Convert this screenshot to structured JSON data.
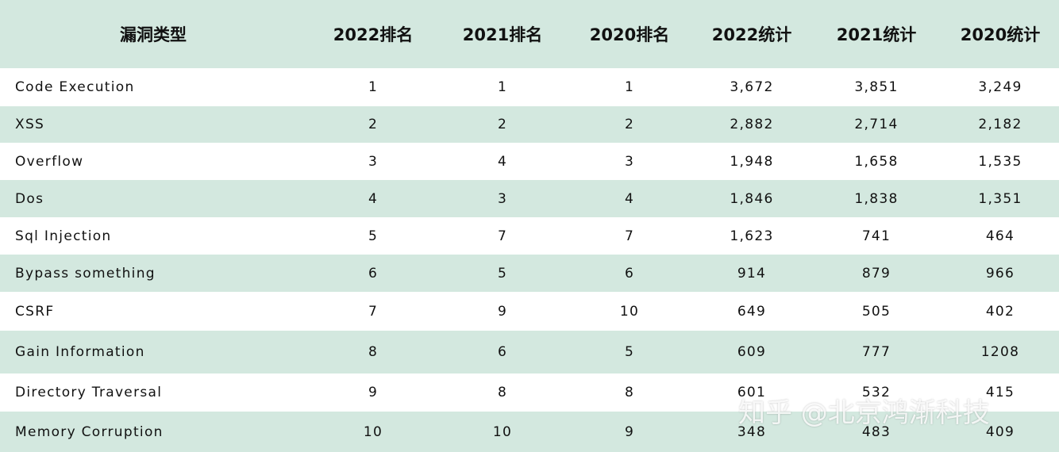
{
  "table": {
    "header": [
      "漏洞类型",
      "2022排名",
      "2021排名",
      "2020排名",
      "2022统计",
      "2021统计",
      "2020统计"
    ],
    "rows": [
      [
        "Code Execution",
        "1",
        "1",
        "1",
        "3,672",
        "3,851",
        "3,249"
      ],
      [
        "XSS",
        "2",
        "2",
        "2",
        "2,882",
        "2,714",
        "2,182"
      ],
      [
        "Overflow",
        "3",
        "4",
        "3",
        "1,948",
        "1,658",
        "1,535"
      ],
      [
        "Dos",
        "4",
        "3",
        "4",
        "1,846",
        "1,838",
        "1,351"
      ],
      [
        "Sql Injection",
        "5",
        "7",
        "7",
        "1,623",
        "741",
        "464"
      ],
      [
        "Bypass something",
        "6",
        "5",
        "6",
        "914",
        "879",
        "966"
      ],
      [
        "CSRF",
        "7",
        "9",
        "10",
        "649",
        "505",
        "402"
      ],
      [
        "Gain Information",
        "8",
        "6",
        "5",
        "609",
        "777",
        "1208"
      ],
      [
        "Directory Traversal",
        "9",
        "8",
        "8",
        "601",
        "532",
        "415"
      ],
      [
        "Memory Corruption",
        "10",
        "10",
        "9",
        "348",
        "483",
        "409"
      ]
    ]
  },
  "watermark": "知乎 @北京鸿渐科技"
}
